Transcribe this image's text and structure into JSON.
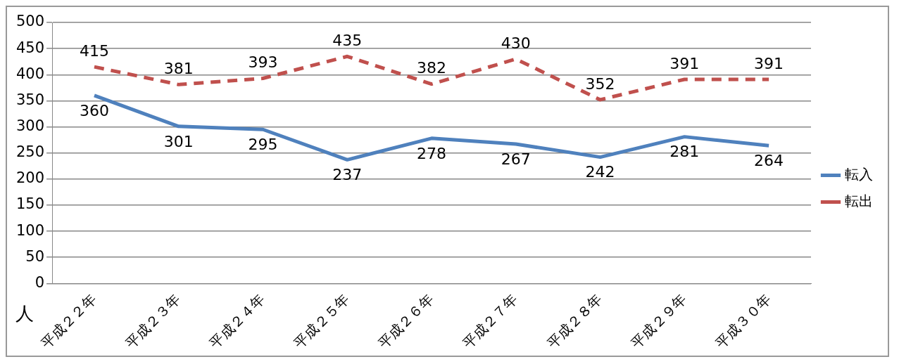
{
  "chart_data": {
    "type": "line",
    "ylabel": "人",
    "categories": [
      "平成２２年",
      "平成２３年",
      "平成２４年",
      "平成２５年",
      "平成２６年",
      "平成２７年",
      "平成２８年",
      "平成２９年",
      "平成３０年"
    ],
    "series": [
      {
        "name": "転入",
        "color": "#4f81bd",
        "line_style": "solid",
        "values": [
          360,
          301,
          295,
          237,
          278,
          267,
          242,
          281,
          264
        ]
      },
      {
        "name": "転出",
        "color": "#c0504d",
        "line_style": "dashed",
        "values": [
          415,
          381,
          393,
          435,
          382,
          430,
          352,
          391,
          391
        ]
      }
    ],
    "ylim": [
      0,
      500
    ],
    "yticks": [
      0,
      50,
      100,
      150,
      200,
      250,
      300,
      350,
      400,
      450,
      500
    ],
    "grid": "y",
    "legend": "right",
    "marker": "none",
    "data_labels": true
  }
}
